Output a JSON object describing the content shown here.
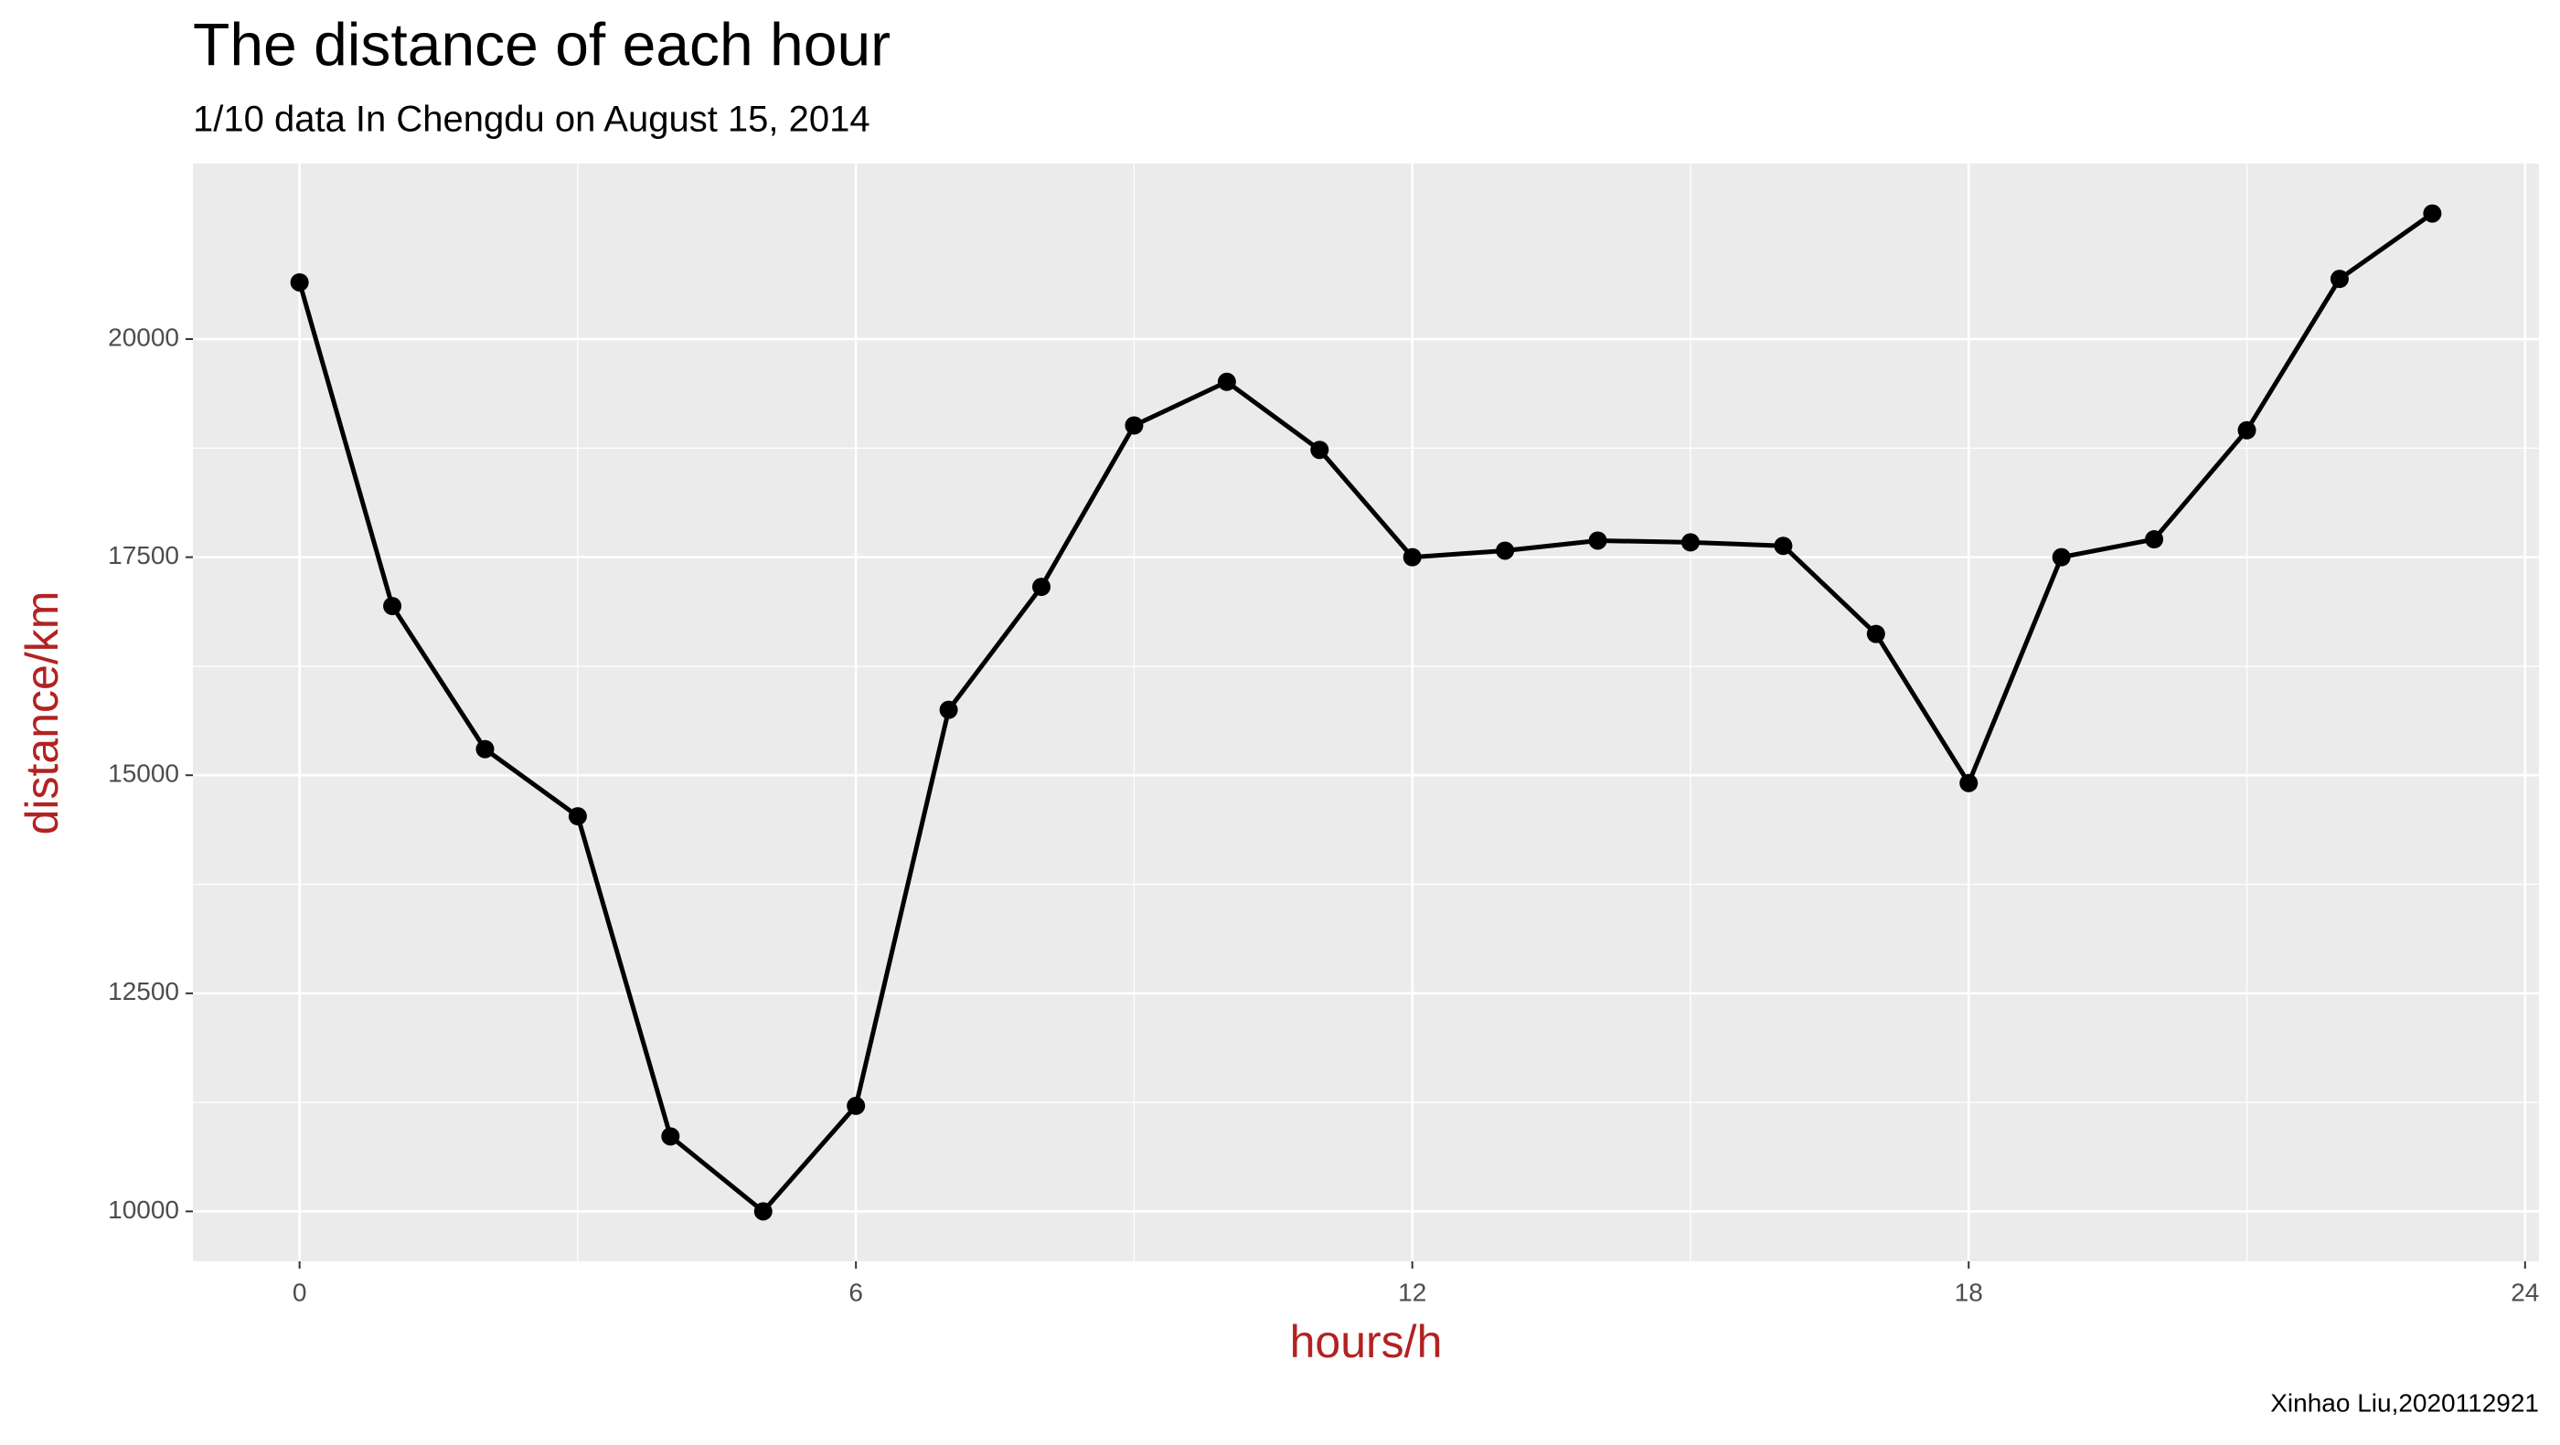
{
  "chart_data": {
    "type": "line",
    "title": "The distance of each hour",
    "subtitle": "1/10 data In Chengdu on August 15, 2014",
    "x_label": "hours/h",
    "y_label": "distance/km",
    "caption": "Xinhao Liu,2020112921",
    "x": [
      0,
      1,
      2,
      3,
      4,
      5,
      6,
      7,
      8,
      9,
      10,
      11,
      12,
      13,
      14,
      15,
      16,
      17,
      18,
      19,
      20,
      21,
      22,
      23
    ],
    "series": [
      {
        "name": "distance",
        "color": "#000000",
        "values": [
          20650,
          16940,
          15300,
          14530,
          10860,
          10000,
          11210,
          15750,
          17160,
          19010,
          19510,
          18730,
          17500,
          17575,
          17690,
          17670,
          17630,
          16620,
          14910,
          17500,
          17705,
          18955,
          20690,
          21440
        ]
      }
    ],
    "xlim": [
      -1.15,
      24.15
    ],
    "xticks": [
      0,
      6,
      12,
      18,
      24
    ],
    "ylim": [
      9428,
      22012
    ],
    "yticks": [
      10000,
      12500,
      15000,
      17500,
      20000
    ],
    "grid": true,
    "markers": true
  }
}
